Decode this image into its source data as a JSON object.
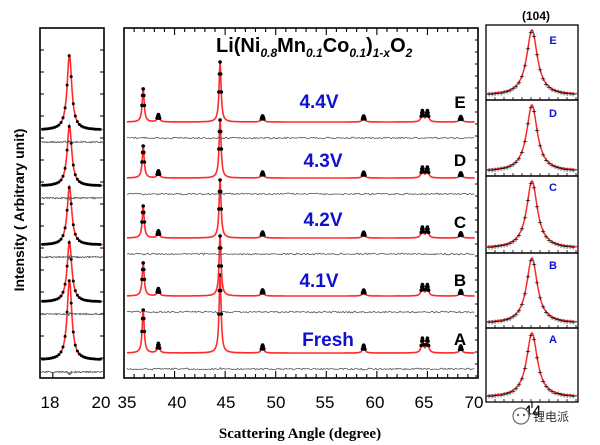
{
  "chart_data": {
    "type": "line",
    "formula": {
      "base": "Li(Ni",
      "ni_sub": "0.8",
      "mn": "Mn",
      "mn_sub": "0.1",
      "co": "Co",
      "co_sub": "0.1",
      "close": ")",
      "x_sub": "1-x",
      "o": "O",
      "o_sub": "2"
    },
    "xlabel": "Scattering Angle (degree)",
    "ylabel": "Intensity ( Arbitrary unit)",
    "left_panel": {
      "xlim": [
        17.5,
        20
      ],
      "xticks": [
        "18",
        "20"
      ]
    },
    "main_panel": {
      "xlim": [
        35,
        70
      ],
      "xticks": [
        "35",
        "40",
        "45",
        "50",
        "55",
        "60",
        "65",
        "70"
      ],
      "peaks": [
        {
          "angle": 36.9,
          "rel_intensity": 0.55
        },
        {
          "angle": 38.4,
          "rel_intensity": 0.12
        },
        {
          "angle": 44.5,
          "rel_intensity": 1.0
        },
        {
          "angle": 48.7,
          "rel_intensity": 0.1
        },
        {
          "angle": 58.7,
          "rel_intensity": 0.1
        },
        {
          "angle": 64.5,
          "rel_intensity": 0.18
        },
        {
          "angle": 65.0,
          "rel_intensity": 0.18
        },
        {
          "angle": 68.3,
          "rel_intensity": 0.09
        }
      ]
    },
    "right_panel": {
      "title": "(104)",
      "xtick": "44"
    },
    "series": [
      {
        "letter": "A",
        "voltage": "Fresh"
      },
      {
        "letter": "B",
        "voltage": "4.1V"
      },
      {
        "letter": "C",
        "voltage": "4.2V"
      },
      {
        "letter": "D",
        "voltage": "4.3V"
      },
      {
        "letter": "E",
        "voltage": "4.4V"
      }
    ],
    "colors": {
      "fit_line": "#ff2a2a",
      "observed": "#000000",
      "difference": "#555555",
      "voltage_text": "#1010d0"
    }
  },
  "watermark": "锂电派"
}
